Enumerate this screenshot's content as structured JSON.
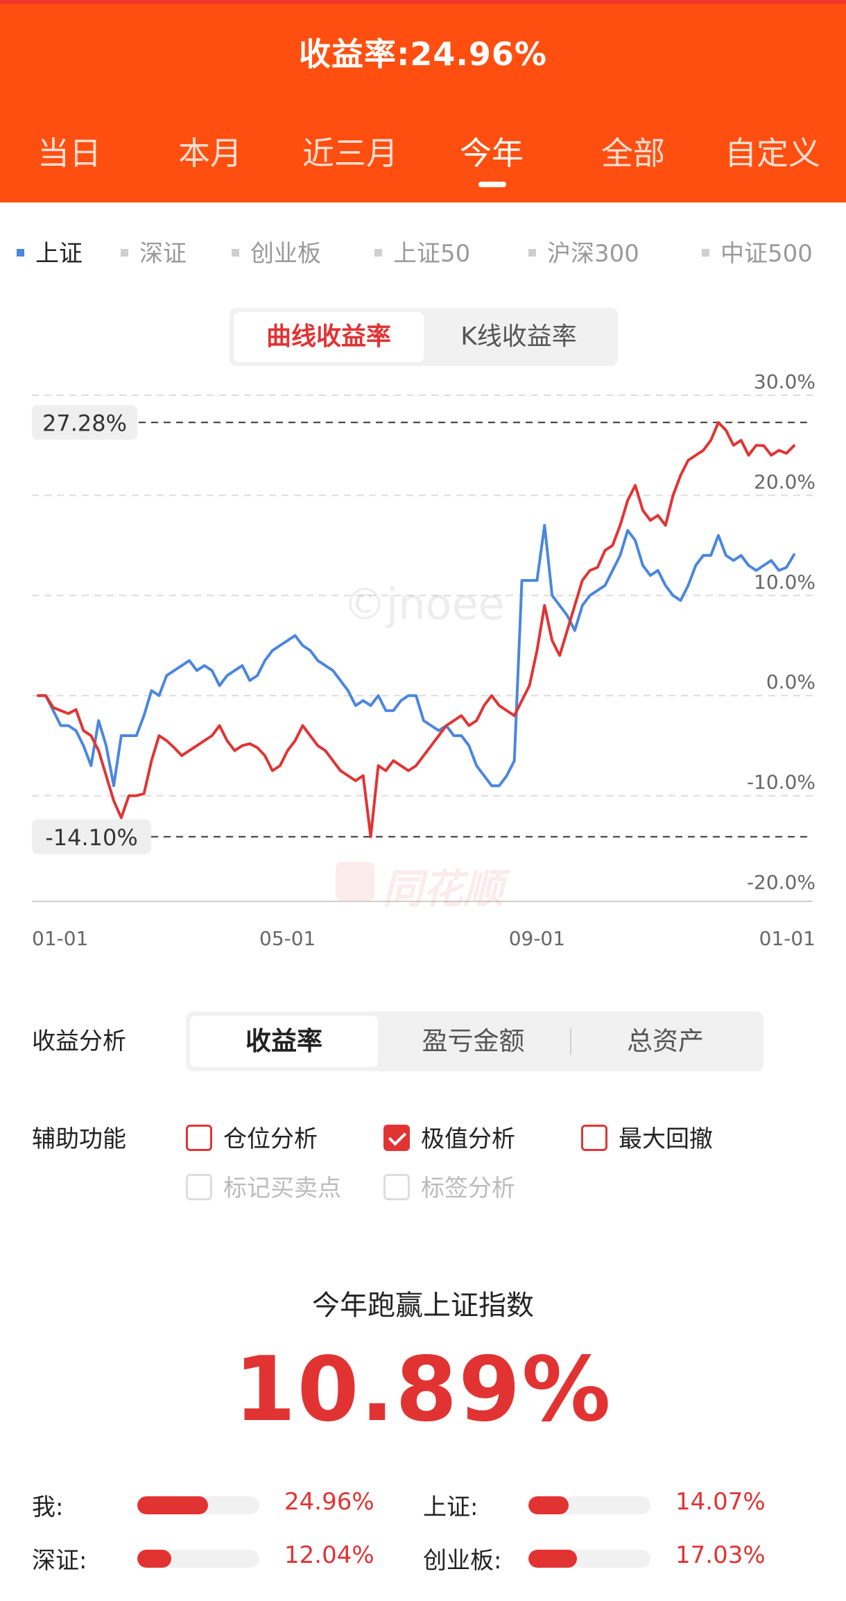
{
  "header": {
    "title": "收益率:24.96%",
    "tabs": [
      {
        "label": "当日",
        "active": false
      },
      {
        "label": "本月",
        "active": false
      },
      {
        "label": "近三月",
        "active": false
      },
      {
        "label": "今年",
        "active": true
      },
      {
        "label": "全部",
        "active": false
      },
      {
        "label": "自定义",
        "active": false
      }
    ]
  },
  "indices": [
    {
      "label": "上证",
      "active": true
    },
    {
      "label": "深证",
      "active": false
    },
    {
      "label": "创业板",
      "active": false
    },
    {
      "label": "上证50",
      "active": false
    },
    {
      "label": "沪深300",
      "active": false
    },
    {
      "label": "中证500",
      "active": false
    }
  ],
  "chart_mode": {
    "options": [
      "曲线收益率",
      "K线收益率"
    ],
    "selected": "曲线收益率"
  },
  "chart_data": {
    "type": "line",
    "ylim": [
      -20,
      30
    ],
    "y_ticks": [
      "30.0%",
      "20.0%",
      "10.0%",
      "0.0%",
      "-10.0%",
      "-20.0%"
    ],
    "x_ticks": [
      "01-01",
      "05-01",
      "09-01",
      "01-01"
    ],
    "max_label": "27.28%",
    "min_label": "-14.10%",
    "max_value": 27.28,
    "min_value": -14.1,
    "watermark": "©jnoee",
    "brand_watermark": "同花顺",
    "series": [
      {
        "color": "#e23333",
        "x": [
          0,
          0.01,
          0.02,
          0.03,
          0.04,
          0.05,
          0.06,
          0.07,
          0.08,
          0.09,
          0.1,
          0.11,
          0.12,
          0.13,
          0.14,
          0.15,
          0.16,
          0.17,
          0.18,
          0.19,
          0.2,
          0.21,
          0.22,
          0.23,
          0.24,
          0.25,
          0.26,
          0.27,
          0.28,
          0.29,
          0.3,
          0.31,
          0.32,
          0.33,
          0.34,
          0.35,
          0.36,
          0.37,
          0.38,
          0.39,
          0.4,
          0.41,
          0.42,
          0.43,
          0.44,
          0.45,
          0.46,
          0.47,
          0.48,
          0.49,
          0.5,
          0.51,
          0.52,
          0.53,
          0.54,
          0.55,
          0.56,
          0.57,
          0.58,
          0.59,
          0.6,
          0.61,
          0.62,
          0.63,
          0.64,
          0.65,
          0.66,
          0.67,
          0.68,
          0.69,
          0.7,
          0.71,
          0.72,
          0.73,
          0.74,
          0.75,
          0.76,
          0.77,
          0.78,
          0.79,
          0.8,
          0.81,
          0.82,
          0.83,
          0.84,
          0.85,
          0.86,
          0.87,
          0.88,
          0.89,
          0.9,
          0.91,
          0.92,
          0.93,
          0.94,
          0.95,
          0.96,
          0.97,
          0.98,
          0.99,
          1.0
        ],
        "values": [
          0,
          0,
          -1.2,
          -1.5,
          -1.8,
          -1.4,
          -3.5,
          -4.0,
          -5.5,
          -8.0,
          -10.5,
          -12.2,
          -10.0,
          -10.0,
          -9.8,
          -6.5,
          -4.0,
          -4.5,
          -5.2,
          -6.0,
          -5.5,
          -5.0,
          -4.5,
          -4.0,
          -3.0,
          -4.5,
          -5.5,
          -5.0,
          -4.8,
          -5.2,
          -6.0,
          -7.5,
          -7.0,
          -5.5,
          -4.5,
          -3.0,
          -4.0,
          -5.0,
          -5.5,
          -6.5,
          -7.5,
          -8.0,
          -8.5,
          -8.0,
          -14.1,
          -7.0,
          -7.5,
          -6.5,
          -7.0,
          -7.5,
          -7.0,
          -6.0,
          -5.0,
          -4.0,
          -3.0,
          -2.5,
          -2.0,
          -3.0,
          -2.5,
          -1.0,
          0,
          -1.0,
          -1.5,
          -2.0,
          -0.5,
          1.0,
          4.5,
          9.0,
          5.5,
          4.0,
          6.5,
          9.0,
          11.5,
          12.5,
          12.8,
          14.5,
          15.0,
          17.0,
          19.5,
          21.0,
          18.5,
          17.5,
          18.0,
          17.0,
          20.0,
          22.0,
          23.5,
          24.0,
          24.5,
          25.5,
          27.28,
          26.5,
          25.0,
          25.5,
          24.0,
          25.0,
          24.96,
          24.0,
          24.5,
          24.2,
          24.96
        ]
      },
      {
        "color": "#4a86e0",
        "x": [
          0,
          0.01,
          0.02,
          0.03,
          0.04,
          0.05,
          0.06,
          0.07,
          0.08,
          0.09,
          0.1,
          0.11,
          0.12,
          0.13,
          0.14,
          0.15,
          0.16,
          0.17,
          0.18,
          0.19,
          0.2,
          0.21,
          0.22,
          0.23,
          0.24,
          0.25,
          0.26,
          0.27,
          0.28,
          0.29,
          0.3,
          0.31,
          0.32,
          0.33,
          0.34,
          0.35,
          0.36,
          0.37,
          0.38,
          0.39,
          0.4,
          0.41,
          0.42,
          0.43,
          0.44,
          0.45,
          0.46,
          0.47,
          0.48,
          0.49,
          0.5,
          0.51,
          0.52,
          0.53,
          0.54,
          0.55,
          0.56,
          0.57,
          0.58,
          0.59,
          0.6,
          0.61,
          0.62,
          0.63,
          0.64,
          0.65,
          0.66,
          0.67,
          0.68,
          0.69,
          0.7,
          0.71,
          0.72,
          0.73,
          0.74,
          0.75,
          0.76,
          0.77,
          0.78,
          0.79,
          0.8,
          0.81,
          0.82,
          0.83,
          0.84,
          0.85,
          0.86,
          0.87,
          0.88,
          0.89,
          0.9,
          0.91,
          0.92,
          0.93,
          0.94,
          0.95,
          0.96,
          0.97,
          0.98,
          0.99,
          1.0
        ],
        "values": [
          0,
          0,
          -1.5,
          -3.0,
          -3.0,
          -3.5,
          -5.0,
          -7.0,
          -2.5,
          -5.0,
          -9.0,
          -4.0,
          -4.0,
          -4.0,
          -2.0,
          0.5,
          0.0,
          2.0,
          2.5,
          3.0,
          3.5,
          2.5,
          3.0,
          2.5,
          1.0,
          2.0,
          2.5,
          3.0,
          1.5,
          2.0,
          3.5,
          4.5,
          5.0,
          5.5,
          6.0,
          5.0,
          4.5,
          3.5,
          3.0,
          2.5,
          1.5,
          0.5,
          -1.0,
          -0.5,
          -1.0,
          0.0,
          -1.5,
          -1.5,
          -0.5,
          0.0,
          0.0,
          -2.5,
          -3.0,
          -3.5,
          -3.0,
          -4.0,
          -4.0,
          -5.0,
          -7.0,
          -8.0,
          -9.0,
          -9.0,
          -8.0,
          -6.5,
          11.5,
          11.5,
          11.5,
          17.0,
          10.0,
          9.0,
          8.0,
          6.5,
          9.0,
          10.0,
          10.5,
          11.0,
          12.5,
          14.0,
          16.5,
          15.5,
          13.0,
          12.0,
          12.5,
          11.0,
          10.0,
          9.5,
          11.0,
          13.0,
          14.0,
          14.0,
          16.0,
          14.0,
          13.5,
          14.0,
          13.0,
          12.5,
          13.0,
          13.5,
          12.5,
          12.8,
          14.07
        ]
      }
    ]
  },
  "analysis": {
    "label": "收益分析",
    "options": [
      "收益率",
      "盈亏金额",
      "总资产"
    ],
    "selected": "收益率"
  },
  "aux": {
    "label": "辅助功能",
    "checkboxes": [
      {
        "label": "仓位分析",
        "checked": false,
        "disabled": false
      },
      {
        "label": "极值分析",
        "checked": true,
        "disabled": false
      },
      {
        "label": "最大回撤",
        "checked": false,
        "disabled": false
      },
      {
        "label": "标记买卖点",
        "checked": false,
        "disabled": true
      },
      {
        "label": "标签分析",
        "checked": false,
        "disabled": true
      }
    ]
  },
  "summary": {
    "title": "今年跑赢上证指数",
    "value": "10.89%",
    "compare": [
      {
        "label": "我:",
        "value": "24.96%",
        "fill": 24.96
      },
      {
        "label": "上证:",
        "value": "14.07%",
        "fill": 14.07
      },
      {
        "label": "深证:",
        "value": "12.04%",
        "fill": 12.04
      },
      {
        "label": "创业板:",
        "value": "17.03%",
        "fill": 17.03
      }
    ]
  },
  "colors": {
    "brand": "#ff4f10",
    "accent": "#e23333",
    "index_line": "#4a86e0"
  }
}
